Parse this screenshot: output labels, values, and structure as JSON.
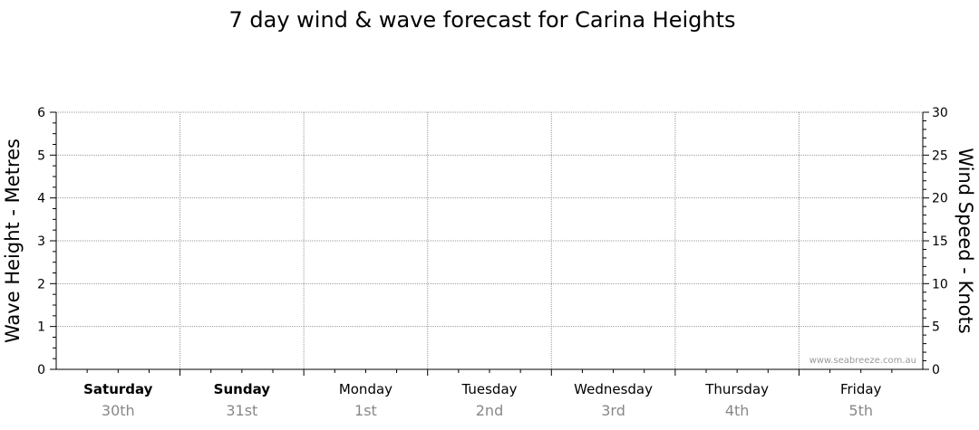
{
  "chart_data": {
    "type": "line",
    "title": "7 day wind & wave forecast for Carina Heights",
    "ylabel_left": "Wave Height - Metres",
    "ylabel_right": "Wind Speed - Knots",
    "ylim_left": [
      0,
      6
    ],
    "ylim_right": [
      0,
      30
    ],
    "yticks_left": [
      "0",
      "1",
      "2",
      "3",
      "4",
      "5",
      "6"
    ],
    "yticks_right": [
      "0",
      "5",
      "10",
      "15",
      "20",
      "25",
      "30"
    ],
    "days": [
      {
        "day": "Saturday",
        "date": "30th",
        "bold": true
      },
      {
        "day": "Sunday",
        "date": "31st",
        "bold": true
      },
      {
        "day": "Monday",
        "date": "1st",
        "bold": false
      },
      {
        "day": "Tuesday",
        "date": "2nd",
        "bold": false
      },
      {
        "day": "Wednesday",
        "date": "3rd",
        "bold": false
      },
      {
        "day": "Thursday",
        "date": "4th",
        "bold": false
      },
      {
        "day": "Friday",
        "date": "5th",
        "bold": false
      }
    ],
    "series": [],
    "grid": true,
    "watermark": "www.seabreeze.com.au"
  }
}
